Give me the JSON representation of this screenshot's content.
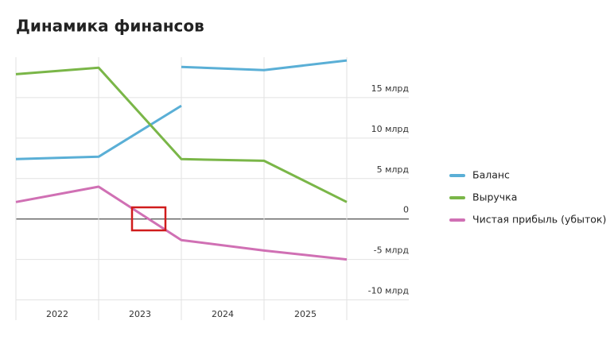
{
  "chart_data": {
    "type": "line",
    "title": "Динамика финансов",
    "categories": [
      "2022",
      "2023",
      "2024",
      "2025"
    ],
    "xlim": [
      2022,
      2026.75
    ],
    "ylim": [
      -12.5,
      20
    ],
    "yticks": [
      {
        "value": -10,
        "label": "-10 млрд"
      },
      {
        "value": -5,
        "label": "-5 млрд"
      },
      0,
      {
        "value": 5,
        "label": "5 млрд"
      },
      {
        "value": 10,
        "label": "10 млрд"
      },
      {
        "value": 15,
        "label": "15 млрд"
      }
    ],
    "grid": true,
    "legend": "right",
    "series": [
      {
        "name": "Баланс",
        "color": "#5aafd6",
        "x": [
          2022,
          2023,
          2024,
          null,
          2024,
          2025,
          2026
        ],
        "values": [
          7.4,
          7.7,
          14.0,
          null,
          18.8,
          18.4,
          19.6
        ]
      },
      {
        "name": "Выручка",
        "color": "#7ab648",
        "x": [
          2022,
          2023,
          2024,
          2025,
          2026
        ],
        "values": [
          17.9,
          18.7,
          7.4,
          7.2,
          2.1
        ]
      },
      {
        "name": "Чистая прибыль (убыток)",
        "color": "#d070b4",
        "x": [
          2022,
          2023,
          2024,
          2025,
          2026
        ],
        "values": [
          2.1,
          4.0,
          -2.6,
          -3.9,
          -5.0
        ]
      }
    ]
  }
}
